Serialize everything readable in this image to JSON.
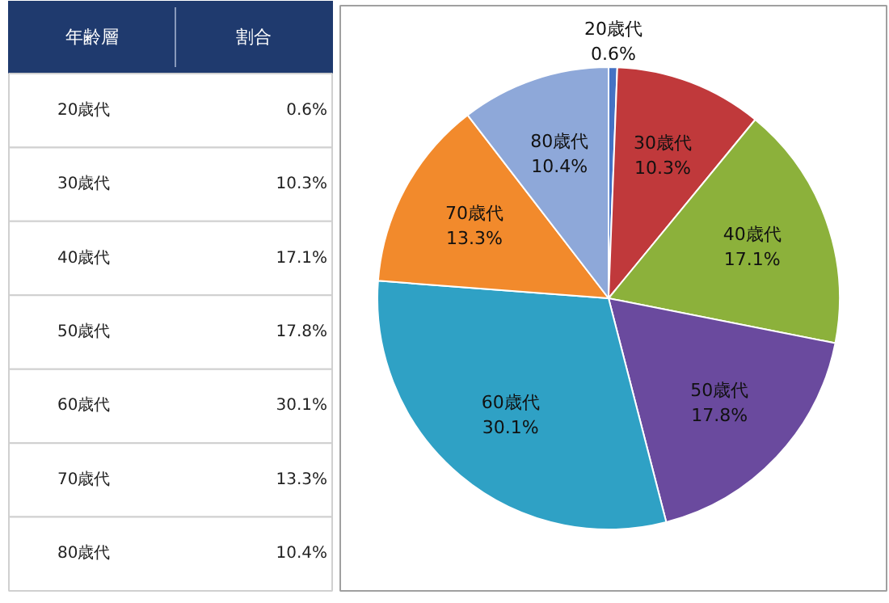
{
  "chart_data": {
    "type": "pie",
    "categories": [
      "20歳代",
      "30歳代",
      "40歳代",
      "50歳代",
      "60歳代",
      "70歳代",
      "80歳代"
    ],
    "values": [
      0.6,
      10.3,
      17.1,
      17.8,
      30.1,
      13.3,
      10.4
    ],
    "colors": [
      "#4472c4",
      "#c0393b",
      "#8cb13b",
      "#6a4a9e",
      "#2fa1c5",
      "#f28a2c",
      "#8ea8d9"
    ],
    "value_labels": [
      "0.6%",
      "10.3%",
      "17.1%",
      "17.8%",
      "30.1%",
      "13.3%",
      "10.4%"
    ],
    "annotations": [
      "年齢層",
      "割合"
    ]
  }
}
